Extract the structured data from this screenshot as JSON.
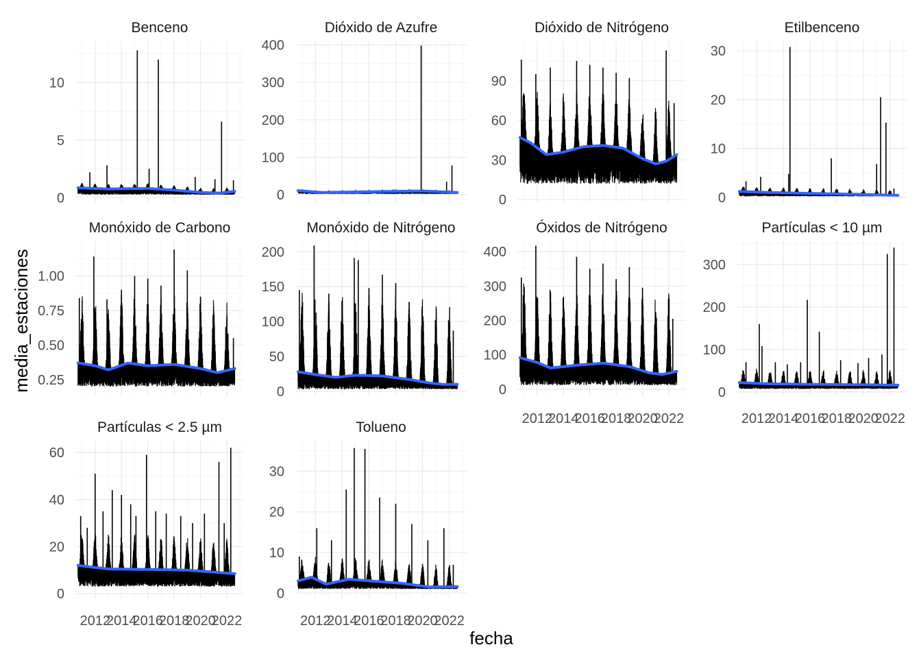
{
  "chart_data": {
    "type": "line",
    "xlabel": "fecha",
    "ylabel": "media_estaciones",
    "x_tick_labels": [
      "2012",
      "2014",
      "2016",
      "2018",
      "2020",
      "2022"
    ],
    "x_ticks": [
      2012,
      2014,
      2016,
      2018,
      2020,
      2022
    ],
    "xlim": [
      2010.5,
      2023.3
    ],
    "grid": true,
    "colors": {
      "series": "#000000",
      "smooth": "#3366FF",
      "grid_major": "#ebebeb",
      "grid_minor": "#f5f5f5"
    },
    "panels": [
      {
        "title": "Benceno",
        "ylim": [
          -0.4,
          13.6
        ],
        "y_ticks": [
          0,
          5,
          10
        ],
        "y_tick_labels": [
          "0",
          "5",
          "10"
        ],
        "series_base": 0.75,
        "series_amp": 0.35,
        "series_low": 0.25,
        "spikes": [
          [
            2011.6,
            2.2
          ],
          [
            2012.9,
            2.8
          ],
          [
            2015.2,
            12.8
          ],
          [
            2016.1,
            2.5
          ],
          [
            2016.8,
            12.0
          ],
          [
            2019.6,
            1.8
          ],
          [
            2021.1,
            1.6
          ],
          [
            2021.6,
            6.6
          ],
          [
            2022.5,
            1.5
          ]
        ],
        "smooth": [
          [
            2010.7,
            0.85
          ],
          [
            2013,
            0.75
          ],
          [
            2016,
            0.8
          ],
          [
            2018,
            0.65
          ],
          [
            2020,
            0.45
          ],
          [
            2021.5,
            0.4
          ],
          [
            2022.6,
            0.55
          ]
        ]
      },
      {
        "title": "Dióxido de Azufre",
        "ylim": [
          -20,
          410
        ],
        "y_ticks": [
          0,
          100,
          200,
          300,
          400
        ],
        "y_tick_labels": [
          "0",
          "100",
          "200",
          "300",
          "400"
        ],
        "series_base": 8,
        "series_amp": 4,
        "series_low": 2,
        "spikes": [
          [
            2010.8,
            14
          ],
          [
            2013.5,
            10
          ],
          [
            2016.0,
            11
          ],
          [
            2017.8,
            14
          ],
          [
            2019.9,
            398
          ],
          [
            2020.8,
            10
          ],
          [
            2021.8,
            35
          ],
          [
            2022.2,
            78
          ]
        ],
        "smooth": [
          [
            2010.7,
            11
          ],
          [
            2012.5,
            6
          ],
          [
            2016,
            8
          ],
          [
            2020,
            10
          ],
          [
            2022.6,
            6
          ]
        ]
      },
      {
        "title": "Dióxido de Nitrógeno",
        "ylim": [
          -2,
          120
        ],
        "y_ticks": [
          0,
          30,
          60,
          90
        ],
        "y_tick_labels": [
          "0",
          "30",
          "60",
          "90"
        ],
        "series_base": 34,
        "series_amp": 36,
        "series_low": 12,
        "spikes": [
          [
            2010.8,
            106
          ],
          [
            2011.9,
            95
          ],
          [
            2013.0,
            100
          ],
          [
            2015.0,
            105
          ],
          [
            2016.0,
            102
          ],
          [
            2017.0,
            100
          ],
          [
            2018.0,
            96
          ],
          [
            2019.0,
            92
          ],
          [
            2021.8,
            113
          ],
          [
            2022.4,
            73
          ]
        ],
        "smooth": [
          [
            2010.7,
            47
          ],
          [
            2011.5,
            43
          ],
          [
            2012.7,
            34
          ],
          [
            2014,
            36
          ],
          [
            2015.5,
            40
          ],
          [
            2017,
            41
          ],
          [
            2018.5,
            39
          ],
          [
            2020,
            31
          ],
          [
            2021,
            27
          ],
          [
            2021.8,
            29
          ],
          [
            2022.6,
            34
          ]
        ]
      },
      {
        "title": "Etilbenceno",
        "ylim": [
          -1,
          32
        ],
        "y_ticks": [
          0,
          10,
          20,
          30
        ],
        "y_tick_labels": [
          "0",
          "10",
          "20",
          "30"
        ],
        "series_base": 1.3,
        "series_amp": 0.9,
        "series_low": 0.2,
        "spikes": [
          [
            2011.2,
            3.3
          ],
          [
            2012.3,
            4.2
          ],
          [
            2014.5,
            30.8
          ],
          [
            2014.4,
            4.8
          ],
          [
            2017.6,
            8.0
          ],
          [
            2021.0,
            6.8
          ],
          [
            2021.3,
            20.5
          ],
          [
            2021.7,
            15.3
          ],
          [
            2022.3,
            1.8
          ]
        ],
        "smooth": [
          [
            2010.7,
            1.2
          ],
          [
            2013,
            1.0
          ],
          [
            2016,
            0.8
          ],
          [
            2020,
            0.6
          ],
          [
            2022.6,
            0.4
          ]
        ]
      },
      {
        "title": "Monóxido de Carbono",
        "ylim": [
          0.13,
          1.25
        ],
        "y_ticks": [
          0.25,
          0.5,
          0.75,
          1.0
        ],
        "y_tick_labels": [
          "0.25",
          "0.50",
          "0.75",
          "1.00"
        ],
        "series_base": 0.32,
        "series_amp": 0.42,
        "series_low": 0.2,
        "spikes": [
          [
            2010.8,
            0.84
          ],
          [
            2011.9,
            1.14
          ],
          [
            2012.9,
            0.83
          ],
          [
            2014.0,
            0.9
          ],
          [
            2015.0,
            1.0
          ],
          [
            2016.0,
            0.98
          ],
          [
            2017.0,
            0.93
          ],
          [
            2018.0,
            1.19
          ],
          [
            2019.0,
            1.04
          ],
          [
            2020.0,
            0.85
          ],
          [
            2021.0,
            0.75
          ],
          [
            2022.0,
            0.7
          ],
          [
            2022.5,
            0.55
          ]
        ],
        "smooth": [
          [
            2010.7,
            0.37
          ],
          [
            2012,
            0.35
          ],
          [
            2013,
            0.32
          ],
          [
            2014.5,
            0.37
          ],
          [
            2016,
            0.35
          ],
          [
            2018,
            0.36
          ],
          [
            2020,
            0.33
          ],
          [
            2021.3,
            0.3
          ],
          [
            2022.6,
            0.33
          ]
        ]
      },
      {
        "title": "Monóxido de Nitrógeno",
        "ylim": [
          -7,
          215
        ],
        "y_ticks": [
          0,
          50,
          100,
          150,
          200
        ],
        "y_tick_labels": [
          "0",
          "50",
          "100",
          "150",
          "200"
        ],
        "series_base": 12,
        "series_amp": 95,
        "series_low": 3,
        "spikes": [
          [
            2010.8,
            145
          ],
          [
            2011.9,
            209
          ],
          [
            2013.0,
            140
          ],
          [
            2014.0,
            125
          ],
          [
            2014.9,
            191
          ],
          [
            2015.2,
            188
          ],
          [
            2016.0,
            148
          ],
          [
            2017.0,
            167
          ],
          [
            2018.0,
            155
          ],
          [
            2019.0,
            128
          ],
          [
            2020.0,
            100
          ],
          [
            2021.0,
            95
          ],
          [
            2022.3,
            87
          ]
        ],
        "smooth": [
          [
            2010.7,
            28
          ],
          [
            2012,
            24
          ],
          [
            2013.5,
            20
          ],
          [
            2015,
            23
          ],
          [
            2017,
            22
          ],
          [
            2019,
            17
          ],
          [
            2020.5,
            12
          ],
          [
            2021.5,
            10
          ],
          [
            2022.6,
            10
          ]
        ]
      },
      {
        "title": "Óxidos de Nitrógeno",
        "ylim": [
          -20,
          430
        ],
        "y_ticks": [
          0,
          100,
          200,
          300,
          400
        ],
        "y_tick_labels": [
          "0",
          "100",
          "200",
          "300",
          "400"
        ],
        "series_base": 50,
        "series_amp": 190,
        "series_low": 12,
        "spikes": [
          [
            2010.8,
            325
          ],
          [
            2011.9,
            417
          ],
          [
            2013.0,
            285
          ],
          [
            2014.0,
            267
          ],
          [
            2015.0,
            385
          ],
          [
            2016.0,
            350
          ],
          [
            2017.0,
            365
          ],
          [
            2018.0,
            320
          ],
          [
            2019.0,
            355
          ],
          [
            2020.0,
            295
          ],
          [
            2021.0,
            225
          ],
          [
            2022.3,
            205
          ]
        ],
        "smooth": [
          [
            2010.7,
            92
          ],
          [
            2012,
            78
          ],
          [
            2013,
            62
          ],
          [
            2015,
            70
          ],
          [
            2017,
            76
          ],
          [
            2019,
            66
          ],
          [
            2020.5,
            48
          ],
          [
            2021.5,
            43
          ],
          [
            2022.6,
            52
          ]
        ]
      },
      {
        "title": "Partículas < 10 µm",
        "ylim": [
          -10,
          355
        ],
        "y_ticks": [
          0,
          100,
          200,
          300
        ],
        "y_tick_labels": [
          "0",
          "100",
          "200",
          "300"
        ],
        "series_base": 22,
        "series_amp": 28,
        "series_low": 7,
        "spikes": [
          [
            2011.2,
            70
          ],
          [
            2012.2,
            160
          ],
          [
            2012.4,
            108
          ],
          [
            2013.4,
            70
          ],
          [
            2014.3,
            65
          ],
          [
            2015.3,
            70
          ],
          [
            2015.8,
            217
          ],
          [
            2016.7,
            142
          ],
          [
            2018.3,
            75
          ],
          [
            2019.6,
            68
          ],
          [
            2020.4,
            80
          ],
          [
            2021.4,
            88
          ],
          [
            2021.8,
            325
          ],
          [
            2022.3,
            340
          ]
        ],
        "smooth": [
          [
            2010.7,
            22
          ],
          [
            2013,
            19
          ],
          [
            2016,
            18
          ],
          [
            2020,
            17
          ],
          [
            2022.6,
            16
          ]
        ]
      },
      {
        "title": "Partículas < 2.5 µm",
        "ylim": [
          -2,
          65
        ],
        "y_ticks": [
          0,
          20,
          40,
          60
        ],
        "y_tick_labels": [
          "0",
          "20",
          "40",
          "60"
        ],
        "series_base": 10,
        "series_amp": 12,
        "series_low": 3,
        "spikes": [
          [
            2010.9,
            33
          ],
          [
            2011.4,
            28
          ],
          [
            2012.0,
            51
          ],
          [
            2012.6,
            35
          ],
          [
            2013.3,
            44
          ],
          [
            2014.0,
            42
          ],
          [
            2014.7,
            38
          ],
          [
            2015.1,
            33
          ],
          [
            2015.9,
            59
          ],
          [
            2016.6,
            35
          ],
          [
            2017.4,
            34
          ],
          [
            2018.5,
            33
          ],
          [
            2019.4,
            30
          ],
          [
            2020.3,
            34
          ],
          [
            2021.4,
            56
          ],
          [
            2021.8,
            30
          ],
          [
            2022.3,
            62
          ]
        ],
        "smooth": [
          [
            2010.7,
            12
          ],
          [
            2013,
            10.5
          ],
          [
            2016,
            10.3
          ],
          [
            2019,
            10
          ],
          [
            2022.6,
            8.5
          ]
        ]
      },
      {
        "title": "Tolueno",
        "ylim": [
          -1.3,
          37.5
        ],
        "y_ticks": [
          0,
          10,
          20,
          30
        ],
        "y_tick_labels": [
          "0",
          "10",
          "20",
          "30"
        ],
        "series_base": 3.2,
        "series_amp": 4.5,
        "series_low": 1,
        "spikes": [
          [
            2010.8,
            9
          ],
          [
            2012.1,
            16
          ],
          [
            2013.2,
            13
          ],
          [
            2014.3,
            25.5
          ],
          [
            2014.9,
            35.7
          ],
          [
            2015.7,
            35.5
          ],
          [
            2016.8,
            23.5
          ],
          [
            2018.0,
            22
          ],
          [
            2019.2,
            17
          ],
          [
            2020.4,
            13
          ],
          [
            2021.6,
            16
          ],
          [
            2022.3,
            7
          ]
        ],
        "smooth": [
          [
            2010.7,
            3
          ],
          [
            2011.7,
            3.9
          ],
          [
            2012.8,
            2.2
          ],
          [
            2014.5,
            3.4
          ],
          [
            2016.5,
            2.9
          ],
          [
            2018.5,
            2.4
          ],
          [
            2020.5,
            1.5
          ],
          [
            2022.6,
            1.6
          ]
        ]
      }
    ]
  }
}
